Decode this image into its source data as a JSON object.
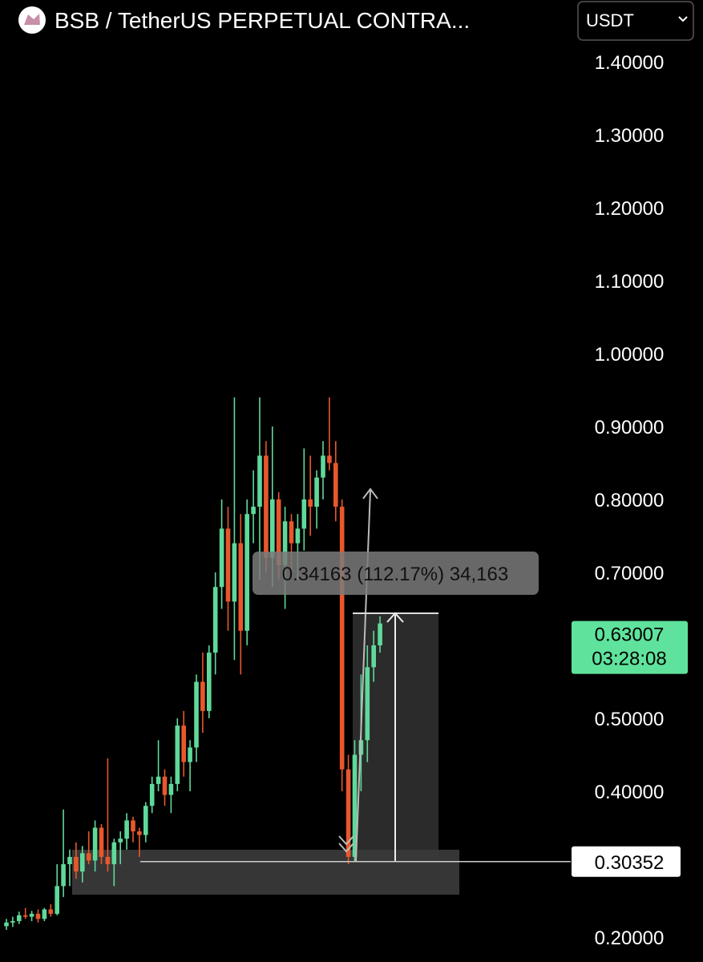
{
  "header": {
    "title": "BSB / TetherUS PERPETUAL CONTRA...",
    "currency": "USDT"
  },
  "chart_data": {
    "type": "candlestick",
    "up_color": "#5fd99a",
    "down_color": "#e8572c",
    "open": [
      0.215,
      0.22,
      0.222,
      0.23,
      0.228,
      0.232,
      0.225,
      0.238,
      0.232,
      0.27,
      0.3,
      0.31,
      0.29,
      0.315,
      0.305,
      0.35,
      0.31,
      0.3,
      0.33,
      0.335,
      0.36,
      0.345,
      0.34,
      0.38,
      0.41,
      0.42,
      0.395,
      0.41,
      0.49,
      0.44,
      0.46,
      0.55,
      0.51,
      0.59,
      0.68,
      0.76,
      0.66,
      0.74,
      0.62,
      0.78,
      0.79,
      0.86,
      0.72,
      0.8,
      0.71,
      0.77,
      0.74,
      0.76,
      0.8,
      0.79,
      0.83,
      0.86,
      0.85,
      0.79,
      0.43,
      0.31,
      0.45,
      0.47,
      0.57,
      0.6
    ],
    "high": [
      0.225,
      0.228,
      0.235,
      0.24,
      0.236,
      0.238,
      0.24,
      0.245,
      0.3,
      0.375,
      0.32,
      0.33,
      0.325,
      0.345,
      0.36,
      0.355,
      0.445,
      0.335,
      0.345,
      0.37,
      0.365,
      0.35,
      0.385,
      0.42,
      0.47,
      0.43,
      0.42,
      0.5,
      0.51,
      0.47,
      0.56,
      0.59,
      0.6,
      0.7,
      0.8,
      0.79,
      0.94,
      0.78,
      0.8,
      0.84,
      0.94,
      0.88,
      0.9,
      0.81,
      0.79,
      0.78,
      0.78,
      0.87,
      0.86,
      0.84,
      0.88,
      0.94,
      0.88,
      0.8,
      0.45,
      0.47,
      0.56,
      0.6,
      0.62,
      0.64
    ],
    "low": [
      0.21,
      0.214,
      0.218,
      0.225,
      0.222,
      0.22,
      0.222,
      0.228,
      0.23,
      0.255,
      0.27,
      0.28,
      0.275,
      0.3,
      0.29,
      0.3,
      0.29,
      0.27,
      0.3,
      0.32,
      0.33,
      0.31,
      0.33,
      0.37,
      0.4,
      0.38,
      0.37,
      0.4,
      0.42,
      0.4,
      0.44,
      0.48,
      0.5,
      0.56,
      0.65,
      0.62,
      0.58,
      0.56,
      0.6,
      0.74,
      0.69,
      0.7,
      0.68,
      0.69,
      0.65,
      0.7,
      0.69,
      0.73,
      0.75,
      0.76,
      0.8,
      0.84,
      0.77,
      0.4,
      0.3,
      0.303,
      0.4,
      0.44,
      0.55,
      0.59
    ],
    "close": [
      0.22,
      0.222,
      0.23,
      0.228,
      0.232,
      0.225,
      0.238,
      0.232,
      0.27,
      0.3,
      0.31,
      0.29,
      0.315,
      0.305,
      0.35,
      0.31,
      0.3,
      0.33,
      0.335,
      0.36,
      0.345,
      0.34,
      0.38,
      0.41,
      0.42,
      0.395,
      0.41,
      0.49,
      0.44,
      0.46,
      0.55,
      0.51,
      0.59,
      0.68,
      0.76,
      0.66,
      0.74,
      0.62,
      0.78,
      0.79,
      0.86,
      0.72,
      0.8,
      0.71,
      0.77,
      0.74,
      0.76,
      0.8,
      0.79,
      0.83,
      0.86,
      0.85,
      0.79,
      0.43,
      0.31,
      0.45,
      0.47,
      0.57,
      0.6,
      0.63
    ],
    "ylim": [
      0.2,
      1.4
    ],
    "yticks": [
      {
        "value": 1.4,
        "label": "1.40000"
      },
      {
        "value": 1.3,
        "label": "1.30000"
      },
      {
        "value": 1.2,
        "label": "1.20000"
      },
      {
        "value": 1.1,
        "label": "1.10000"
      },
      {
        "value": 1.0,
        "label": "1.00000"
      },
      {
        "value": 0.9,
        "label": "0.90000"
      },
      {
        "value": 0.8,
        "label": "0.80000"
      },
      {
        "value": 0.7,
        "label": "0.70000"
      },
      {
        "value": 0.5,
        "label": "0.50000"
      },
      {
        "value": 0.4,
        "label": "0.40000"
      },
      {
        "value": 0.2,
        "label": "0.20000"
      }
    ],
    "current_price": 0.63007,
    "countdown": "03:28:08",
    "marked_price": 0.30352,
    "annotation": "0.34163 (112.17%) 34,163"
  }
}
